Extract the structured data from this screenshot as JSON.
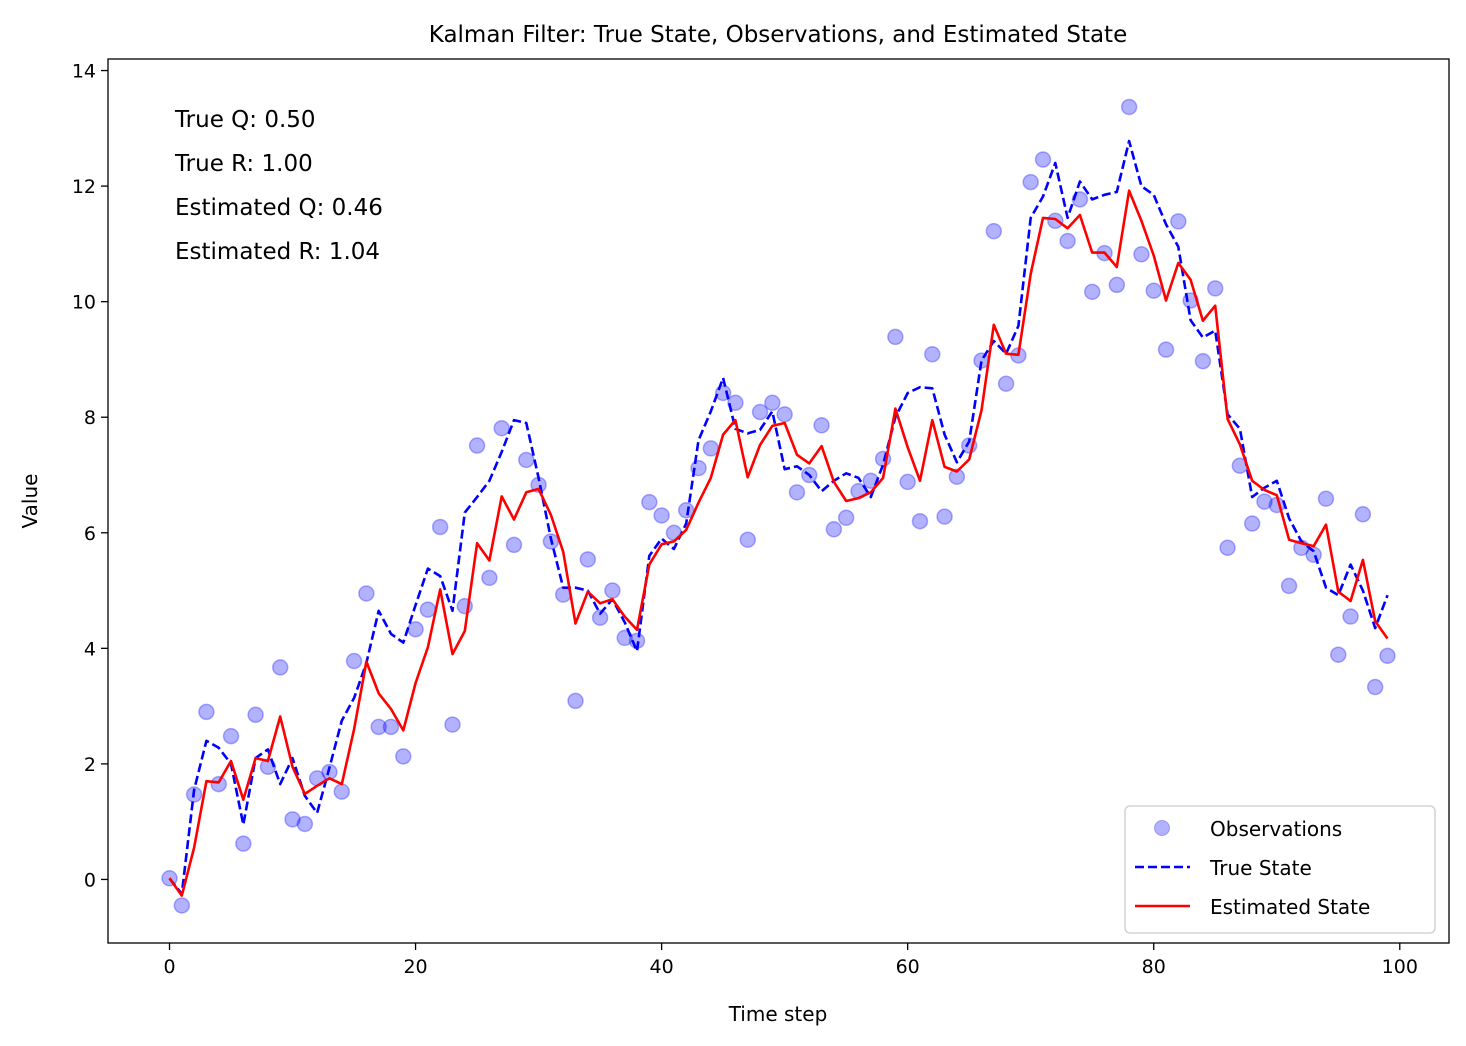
{
  "chart_data": {
    "type": "line",
    "title": "Kalman Filter: True State, Observations, and Estimated State",
    "xlabel": "Time step",
    "ylabel": "Value",
    "xlim": [
      -5,
      104
    ],
    "ylim": [
      -1.1,
      14.2
    ],
    "xticks": [
      0,
      20,
      40,
      60,
      80,
      100
    ],
    "yticks": [
      0,
      2,
      4,
      6,
      8,
      10,
      12,
      14
    ],
    "grid": false,
    "legend_position": "lower-right",
    "annotations": [
      "True Q: 0.50",
      "True R: 1.00",
      "Estimated Q: 0.46",
      "Estimated R: 1.04"
    ],
    "x": [
      0,
      1,
      2,
      3,
      4,
      5,
      6,
      7,
      8,
      9,
      10,
      11,
      12,
      13,
      14,
      15,
      16,
      17,
      18,
      19,
      20,
      21,
      22,
      23,
      24,
      25,
      26,
      27,
      28,
      29,
      30,
      31,
      32,
      33,
      34,
      35,
      36,
      37,
      38,
      39,
      40,
      41,
      42,
      43,
      44,
      45,
      46,
      47,
      48,
      49,
      50,
      51,
      52,
      53,
      54,
      55,
      56,
      57,
      58,
      59,
      60,
      61,
      62,
      63,
      64,
      65,
      66,
      67,
      68,
      69,
      70,
      71,
      72,
      73,
      74,
      75,
      76,
      77,
      78,
      79,
      80,
      81,
      82,
      83,
      84,
      85,
      86,
      87,
      88,
      89,
      90,
      91,
      92,
      93,
      94,
      95,
      96,
      97,
      98,
      99
    ],
    "series": [
      {
        "name": "Observations",
        "style": "markers",
        "color": "#0000ff",
        "values": [
          0.02,
          -0.45,
          1.47,
          2.9,
          1.65,
          2.48,
          0.62,
          2.85,
          1.95,
          3.67,
          1.04,
          0.96,
          1.75,
          1.86,
          1.52,
          3.78,
          4.95,
          2.64,
          2.64,
          2.13,
          4.33,
          4.67,
          6.1,
          2.68,
          4.73,
          7.51,
          5.22,
          7.81,
          5.79,
          7.26,
          6.83,
          5.85,
          4.93,
          3.09,
          5.54,
          4.53,
          5.0,
          4.18,
          4.13,
          6.53,
          6.3,
          6.0,
          6.39,
          7.12,
          7.46,
          8.42,
          8.25,
          5.88,
          8.09,
          8.25,
          8.05,
          6.7,
          7.0,
          7.86,
          6.06,
          6.26,
          6.72,
          6.9,
          7.28,
          9.39,
          6.88,
          6.2,
          9.09,
          6.28,
          6.97,
          7.51,
          8.98,
          11.22,
          8.58,
          9.07,
          12.07,
          12.46,
          11.4,
          11.05,
          11.77,
          10.17,
          10.84,
          10.29,
          13.37,
          10.82,
          10.19,
          9.17,
          11.39,
          10.02,
          8.97,
          10.23,
          5.74,
          7.16,
          6.16,
          6.54,
          6.48,
          5.08,
          5.74,
          5.62,
          6.59,
          3.89,
          4.55,
          6.32,
          3.33,
          3.87
        ]
      },
      {
        "name": "True State",
        "style": "dashed",
        "color": "#0000ff",
        "values": [
          0.02,
          -0.25,
          1.55,
          2.4,
          2.28,
          2.0,
          0.95,
          2.1,
          2.25,
          1.65,
          2.1,
          1.45,
          1.15,
          1.93,
          2.75,
          3.14,
          3.75,
          4.65,
          4.25,
          4.1,
          4.75,
          5.38,
          5.25,
          4.65,
          6.35,
          6.62,
          6.9,
          7.4,
          7.95,
          7.9,
          6.95,
          5.9,
          5.05,
          5.05,
          5.0,
          4.6,
          4.85,
          4.45,
          3.95,
          5.6,
          5.9,
          5.72,
          6.16,
          7.6,
          8.1,
          8.68,
          7.8,
          7.72,
          7.78,
          8.1,
          7.1,
          7.15,
          7.0,
          6.72,
          6.9,
          7.03,
          6.95,
          6.62,
          7.18,
          8.0,
          8.42,
          8.52,
          8.5,
          7.7,
          7.22,
          7.58,
          8.98,
          9.32,
          9.1,
          9.58,
          11.45,
          11.82,
          12.4,
          11.45,
          12.08,
          11.77,
          11.85,
          11.9,
          12.78,
          12.0,
          11.85,
          11.34,
          10.95,
          9.68,
          9.38,
          9.5,
          8.05,
          7.8,
          6.62,
          6.78,
          6.9,
          6.25,
          5.85,
          5.68,
          5.05,
          4.92,
          5.45,
          5.0,
          4.35,
          4.92
        ]
      },
      {
        "name": "Estimated State",
        "style": "solid",
        "color": "#ff0000",
        "values": [
          0.02,
          -0.28,
          0.55,
          1.7,
          1.68,
          2.05,
          1.38,
          2.1,
          2.05,
          2.82,
          1.95,
          1.48,
          1.62,
          1.75,
          1.65,
          2.6,
          3.77,
          3.22,
          2.95,
          2.58,
          3.4,
          4.02,
          5.02,
          3.9,
          4.3,
          5.82,
          5.52,
          6.63,
          6.23,
          6.7,
          6.76,
          6.31,
          5.67,
          4.43,
          4.98,
          4.78,
          4.85,
          4.55,
          4.32,
          5.45,
          5.8,
          5.85,
          6.05,
          6.52,
          6.95,
          7.7,
          7.95,
          6.96,
          7.52,
          7.85,
          7.9,
          7.35,
          7.2,
          7.5,
          6.88,
          6.55,
          6.6,
          6.7,
          6.95,
          8.15,
          7.48,
          6.9,
          7.95,
          7.14,
          7.06,
          7.27,
          8.12,
          9.6,
          9.1,
          9.08,
          10.48,
          11.45,
          11.43,
          11.27,
          11.5,
          10.85,
          10.85,
          10.6,
          11.92,
          11.4,
          10.8,
          10.02,
          10.67,
          10.38,
          9.67,
          9.93,
          7.97,
          7.53,
          6.9,
          6.74,
          6.65,
          5.88,
          5.82,
          5.77,
          6.14,
          4.98,
          4.82,
          5.53,
          4.47,
          4.17
        ]
      }
    ]
  }
}
